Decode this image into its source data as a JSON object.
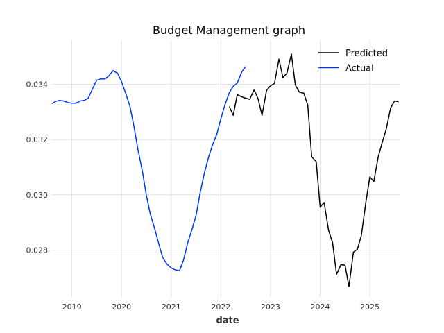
{
  "chart_data": {
    "type": "line",
    "title": "Budget Management graph",
    "xlabel": "date",
    "ylabel": "",
    "xlim": [
      2018.6,
      2025.6
    ],
    "ylim": [
      0.0263,
      0.0356
    ],
    "xticks": [
      2019,
      2020,
      2021,
      2022,
      2023,
      2024,
      2025
    ],
    "yticks": [
      0.028,
      0.03,
      0.032,
      0.034
    ],
    "ytick_labels": [
      "0.028",
      "0.030",
      "0.032",
      "0.034"
    ],
    "grid": true,
    "legend_position": "top-right",
    "series": [
      {
        "name": "Predicted",
        "color": "#000000",
        "x": [
          2022.17,
          2022.25,
          2022.33,
          2022.42,
          2022.5,
          2022.58,
          2022.67,
          2022.75,
          2022.83,
          2022.92,
          2023.0,
          2023.08,
          2023.17,
          2023.25,
          2023.33,
          2023.42,
          2023.5,
          2023.58,
          2023.67,
          2023.75,
          2023.83,
          2023.92,
          2024.0,
          2024.08,
          2024.17,
          2024.25,
          2024.33,
          2024.42,
          2024.5,
          2024.58,
          2024.67,
          2024.75,
          2024.83,
          2024.92,
          2025.0,
          2025.08,
          2025.17,
          2025.25,
          2025.33,
          2025.42,
          2025.5,
          2025.58
        ],
        "y": [
          0.0332,
          0.03288,
          0.03363,
          0.03355,
          0.0335,
          0.03346,
          0.0338,
          0.03348,
          0.03288,
          0.03378,
          0.03395,
          0.03403,
          0.03492,
          0.03425,
          0.0344,
          0.0351,
          0.03398,
          0.03372,
          0.03368,
          0.03325,
          0.03138,
          0.0312,
          0.02955,
          0.02972,
          0.0287,
          0.02827,
          0.02712,
          0.02747,
          0.02745,
          0.02668,
          0.02792,
          0.02803,
          0.02853,
          0.02972,
          0.03065,
          0.03048,
          0.03138,
          0.0319,
          0.03238,
          0.03315,
          0.0334,
          0.03337
        ]
      },
      {
        "name": "Actual",
        "color": "#0033ff",
        "x": [
          2018.6,
          2018.67,
          2018.75,
          2018.83,
          2018.92,
          2019.0,
          2019.08,
          2019.17,
          2019.25,
          2019.33,
          2019.42,
          2019.5,
          2019.58,
          2019.67,
          2019.75,
          2019.83,
          2019.92,
          2020.0,
          2020.08,
          2020.17,
          2020.25,
          2020.33,
          2020.42,
          2020.5,
          2020.58,
          2020.67,
          2020.75,
          2020.83,
          2020.92,
          2021.0,
          2021.08,
          2021.17,
          2021.25,
          2021.33,
          2021.42,
          2021.5,
          2021.58,
          2021.67,
          2021.75,
          2021.83,
          2021.92,
          2022.0,
          2022.08,
          2022.17,
          2022.25,
          2022.33,
          2022.42,
          2022.5
        ],
        "y": [
          0.0333,
          0.03338,
          0.03342,
          0.0334,
          0.03334,
          0.03332,
          0.03332,
          0.0334,
          0.03342,
          0.0335,
          0.03385,
          0.03415,
          0.0342,
          0.0342,
          0.03432,
          0.0345,
          0.0344,
          0.0341,
          0.0337,
          0.0332,
          0.03248,
          0.03165,
          0.03085,
          0.02998,
          0.0293,
          0.02875,
          0.02822,
          0.02772,
          0.02748,
          0.02735,
          0.02728,
          0.02725,
          0.02765,
          0.02825,
          0.02875,
          0.02925,
          0.03005,
          0.0308,
          0.03135,
          0.0318,
          0.0322,
          0.03275,
          0.03325,
          0.0337,
          0.03393,
          0.03405,
          0.03445,
          0.03465
        ]
      }
    ]
  }
}
